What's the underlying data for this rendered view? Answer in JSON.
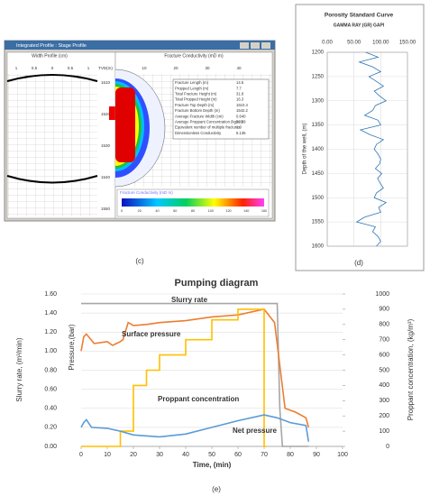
{
  "captions": [
    "(c)",
    "(d)",
    "(e)"
  ],
  "screenshot": {
    "window_title": "Integrated Profile : Stage Profile",
    "left_panel_title": "Width Profile (cm)",
    "left_ticks": [
      "1",
      "0.5",
      "0",
      "0.5",
      "1"
    ],
    "depth_header": "TVD(m)",
    "depths": [
      "1510",
      "1520",
      "1530",
      "1540",
      "1550"
    ],
    "right_panel_title": "Fracture Conductivity (mD m)",
    "right_ticks": [
      "10",
      "20",
      "30",
      "40"
    ],
    "table": [
      [
        "Fracture Length (m)",
        "14.5"
      ],
      [
        "Propped Length (m)",
        "7.7"
      ],
      [
        "Total Fracture Height (m)",
        "31.8"
      ],
      [
        "Total Propped Height (m)",
        "16.3"
      ],
      [
        "Fracture Top Depth (m)",
        "1510.4"
      ],
      [
        "Fracture Bottom Depth (m)",
        "1542.2"
      ],
      [
        "Average Fracture Width (cm)",
        "0.640"
      ],
      [
        "Average Proppant Concentration (kg/m²)",
        "22.09"
      ],
      [
        "Equivalent number of multiple fractures",
        "1.0"
      ],
      [
        "Dimensionless Conductivity",
        "5.135"
      ]
    ],
    "legend_title": "Fracture Conductivity (mD m)",
    "legend_ticks": [
      "0",
      "20",
      "40",
      "60",
      "80",
      "100",
      "120",
      "140",
      "160"
    ]
  },
  "chart_data": [
    {
      "type": "profile",
      "title": "Porosity Standard Curve",
      "subtitle": "GAMMA RAY (GR) GAPI",
      "y_label": "Depth of the well, (m)",
      "xlim": [
        0,
        150
      ],
      "xticks": [
        {
          "value": 0,
          "label": "0.00"
        },
        {
          "value": 50,
          "label": "50.00"
        },
        {
          "value": 100,
          "label": "100.00"
        },
        {
          "value": 150,
          "label": "150.00"
        }
      ],
      "ylim": [
        1200,
        1600
      ],
      "yticks": [
        1200,
        1250,
        1300,
        1350,
        1400,
        1450,
        1500,
        1550,
        1600
      ],
      "grid": true,
      "series": [
        {
          "color": "#2e75b6",
          "depth": [
            1200,
            1210,
            1220,
            1230,
            1240,
            1250,
            1260,
            1270,
            1280,
            1290,
            1300,
            1310,
            1320,
            1330,
            1340,
            1350,
            1360,
            1370,
            1380,
            1390,
            1400,
            1410,
            1420,
            1430,
            1440,
            1450,
            1460,
            1470,
            1480,
            1490,
            1500,
            1510,
            1520,
            1530,
            1540,
            1550,
            1560,
            1570,
            1580,
            1590,
            1600
          ],
          "values": [
            72,
            95,
            60,
            85,
            100,
            78,
            92,
            105,
            88,
            98,
            110,
            90,
            85,
            70,
            95,
            100,
            62,
            80,
            105,
            92,
            88,
            95,
            100,
            98,
            90,
            102,
            94,
            99,
            105,
            92,
            88,
            110,
            96,
            100,
            70,
            55,
            90,
            85,
            95,
            100,
            92
          ]
        }
      ]
    },
    {
      "type": "line",
      "title": "Pumping diagram",
      "x_label": "Time, (min)",
      "y_label": "Slurry rate, (m³/min)",
      "y_label_2": "Pressure,(bar)",
      "y2_label": "Proppant concentration, (kg/m³)",
      "xlim": [
        0,
        100
      ],
      "xticks": [
        0,
        10,
        20,
        30,
        40,
        50,
        60,
        70,
        80,
        90,
        100
      ],
      "ylim": [
        0,
        1.6
      ],
      "yticks": [
        {
          "value": 0,
          "label": "0.00"
        },
        {
          "value": 0.2,
          "label": "0.20"
        },
        {
          "value": 0.4,
          "label": "0.40"
        },
        {
          "value": 0.6,
          "label": "0.60"
        },
        {
          "value": 0.8,
          "label": "0.80"
        },
        {
          "value": 1.0,
          "label": "1.00"
        },
        {
          "value": 1.2,
          "label": "1.20"
        },
        {
          "value": 1.4,
          "label": "1.40"
        },
        {
          "value": 1.6,
          "label": "1.60"
        }
      ],
      "y2lim": [
        0,
        1000
      ],
      "y2ticks": [
        0,
        100,
        200,
        300,
        400,
        500,
        600,
        700,
        800,
        900,
        1000
      ],
      "grid": true,
      "series": [
        {
          "name": "Slurry rate",
          "color": "#a6a6a6",
          "x": [
            0,
            75,
            76,
            77,
            87
          ],
          "values": [
            1.5,
            1.5,
            0.4,
            0,
            0
          ]
        },
        {
          "name": "Surface pressure",
          "color": "#ed7d31",
          "x": [
            0,
            1,
            2,
            5,
            10,
            12,
            15,
            16,
            18,
            20,
            25,
            30,
            40,
            50,
            60,
            70,
            74,
            78,
            82,
            86,
            87
          ],
          "values": [
            1.0,
            1.15,
            1.18,
            1.08,
            1.1,
            1.06,
            1.1,
            1.12,
            1.3,
            1.27,
            1.28,
            1.3,
            1.32,
            1.36,
            1.38,
            1.44,
            1.3,
            0.4,
            0.36,
            0.3,
            0.2
          ]
        },
        {
          "name": "Proppant concentration",
          "color": "#ffc000",
          "axis": "y2",
          "x": [
            0,
            15,
            15,
            20,
            20,
            25,
            25,
            30,
            30,
            40,
            40,
            50,
            50,
            60,
            60,
            70,
            70,
            71
          ],
          "values": [
            0,
            0,
            100,
            100,
            400,
            400,
            500,
            500,
            600,
            600,
            700,
            700,
            830,
            830,
            900,
            900,
            0,
            0
          ]
        },
        {
          "name": "Net pressure",
          "color": "#5b9bd5",
          "x": [
            0,
            1,
            2,
            4,
            10,
            15,
            20,
            30,
            40,
            50,
            60,
            70,
            75,
            80,
            86,
            87
          ],
          "values": [
            0.2,
            0.25,
            0.28,
            0.2,
            0.19,
            0.16,
            0.12,
            0.1,
            0.13,
            0.2,
            0.27,
            0.33,
            0.3,
            0.25,
            0.22,
            0.05
          ]
        }
      ]
    }
  ]
}
